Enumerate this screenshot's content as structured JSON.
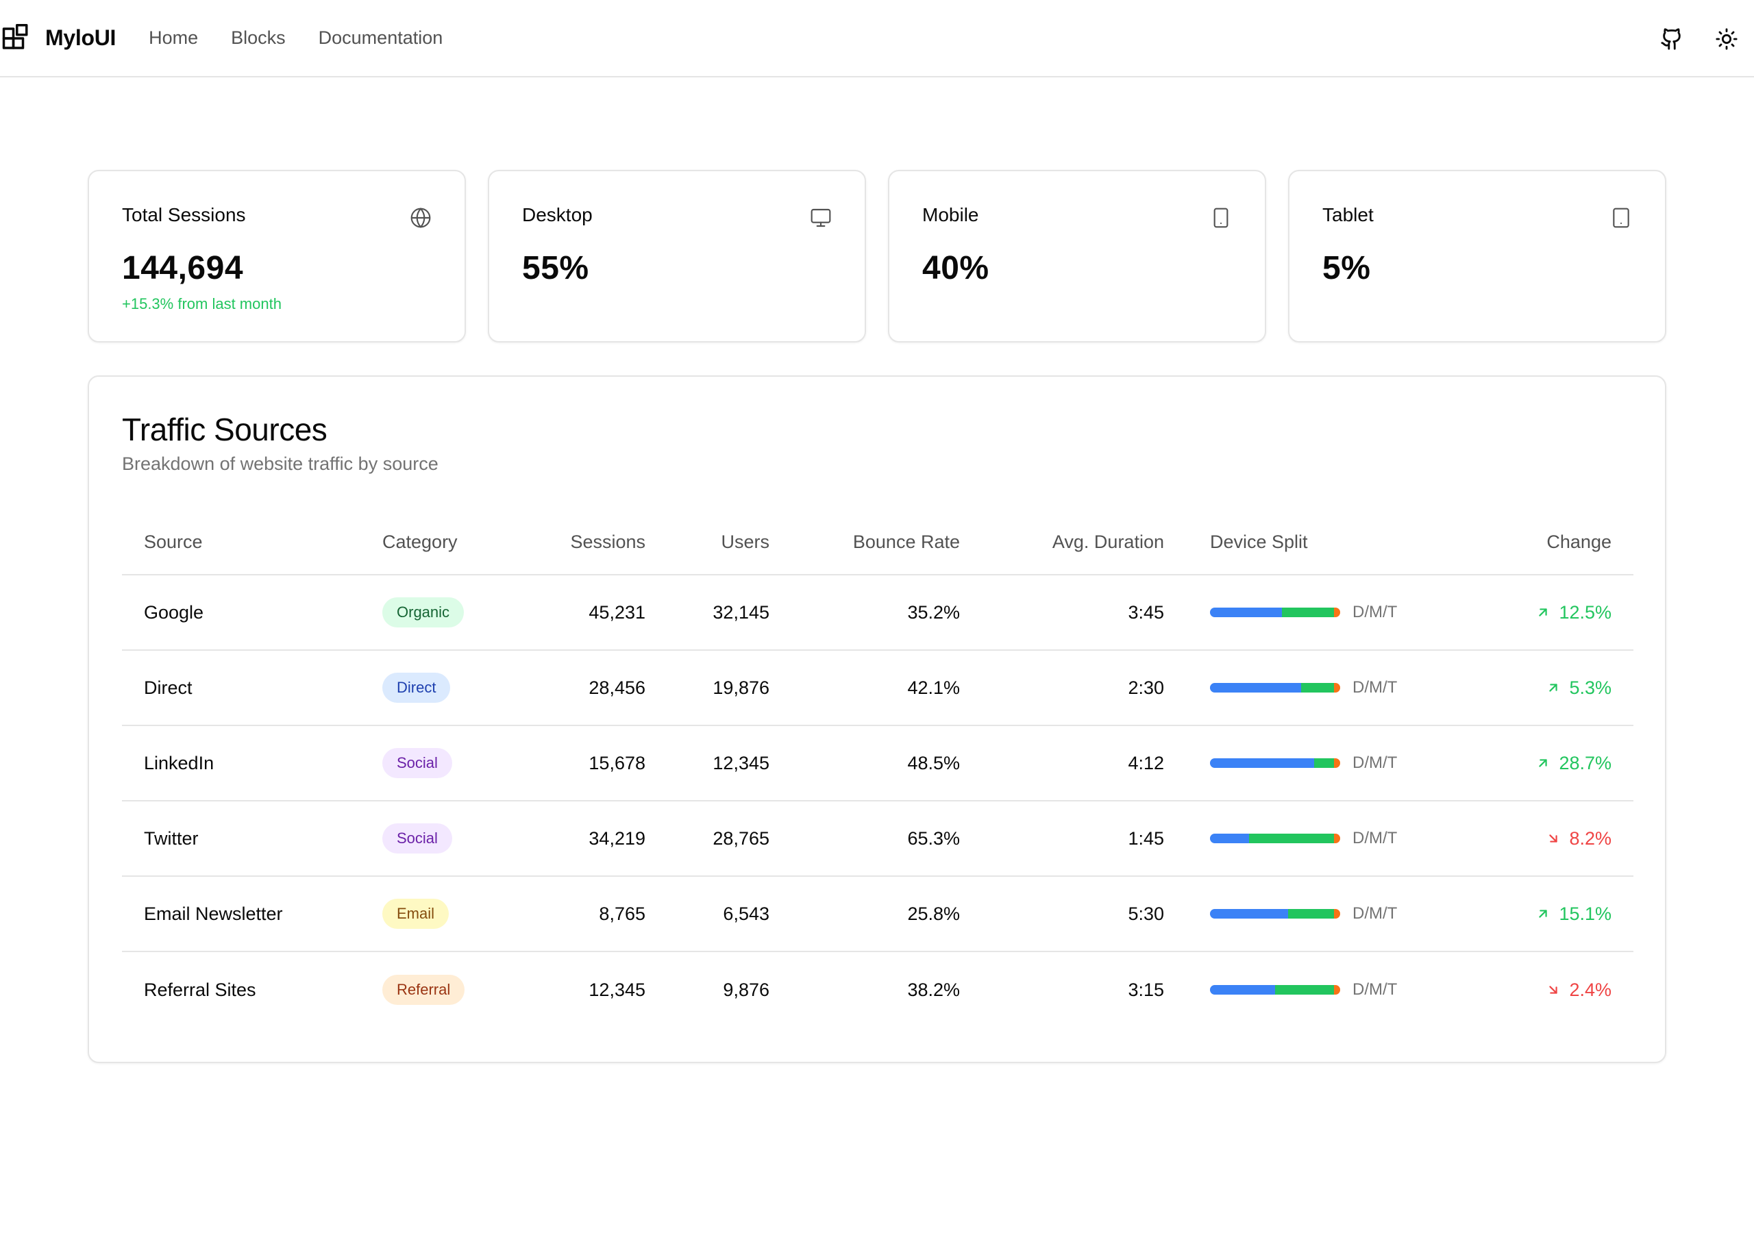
{
  "header": {
    "brand": "MyloUI",
    "nav": [
      "Home",
      "Blocks",
      "Documentation"
    ],
    "icons": [
      "github-icon",
      "sun-icon"
    ]
  },
  "stats": [
    {
      "label": "Total Sessions",
      "value": "144,694",
      "delta": "+15.3% from last month",
      "icon": "globe-icon"
    },
    {
      "label": "Desktop",
      "value": "55%",
      "delta": "",
      "icon": "monitor-icon"
    },
    {
      "label": "Mobile",
      "value": "40%",
      "delta": "",
      "icon": "phone-icon"
    },
    {
      "label": "Tablet",
      "value": "5%",
      "delta": "",
      "icon": "tablet-icon"
    }
  ],
  "traffic": {
    "title": "Traffic Sources",
    "subtitle": "Breakdown of website traffic by source",
    "columns": {
      "source": "Source",
      "category": "Category",
      "sessions": "Sessions",
      "users": "Users",
      "bounce": "Bounce Rate",
      "duration": "Avg. Duration",
      "device": "Device Split",
      "change": "Change"
    },
    "rows": [
      {
        "source": "Google",
        "category": "Organic",
        "sessions": "45,231",
        "users": "32,145",
        "bounce": "35.2%",
        "duration": "3:45",
        "device_legend": "D/M/T",
        "split": [
          0.55,
          0.4,
          0.05
        ],
        "change": "12.5%",
        "trend": "up"
      },
      {
        "source": "Direct",
        "category": "Direct",
        "sessions": "28,456",
        "users": "19,876",
        "bounce": "42.1%",
        "duration": "2:30",
        "device_legend": "D/M/T",
        "split": [
          0.7,
          0.25,
          0.05
        ],
        "change": "5.3%",
        "trend": "up"
      },
      {
        "source": "LinkedIn",
        "category": "Social",
        "sessions": "15,678",
        "users": "12,345",
        "bounce": "48.5%",
        "duration": "4:12",
        "device_legend": "D/M/T",
        "split": [
          0.8,
          0.15,
          0.05
        ],
        "change": "28.7%",
        "trend": "up"
      },
      {
        "source": "Twitter",
        "category": "Social",
        "sessions": "34,219",
        "users": "28,765",
        "bounce": "65.3%",
        "duration": "1:45",
        "device_legend": "D/M/T",
        "split": [
          0.3,
          0.65,
          0.05
        ],
        "change": "8.2%",
        "trend": "down"
      },
      {
        "source": "Email Newsletter",
        "category": "Email",
        "sessions": "8,765",
        "users": "6,543",
        "bounce": "25.8%",
        "duration": "5:30",
        "device_legend": "D/M/T",
        "split": [
          0.6,
          0.35,
          0.05
        ],
        "change": "15.1%",
        "trend": "up"
      },
      {
        "source": "Referral Sites",
        "category": "Referral",
        "sessions": "12,345",
        "users": "9,876",
        "bounce": "38.2%",
        "duration": "3:15",
        "device_legend": "D/M/T",
        "split": [
          0.5,
          0.45,
          0.05
        ],
        "change": "2.4%",
        "trend": "down"
      }
    ]
  },
  "colors": {
    "desktop": "#3b82f6",
    "mobile": "#22c55e",
    "tablet": "#f97316",
    "positive": "#22c55e",
    "negative": "#ef4444"
  }
}
